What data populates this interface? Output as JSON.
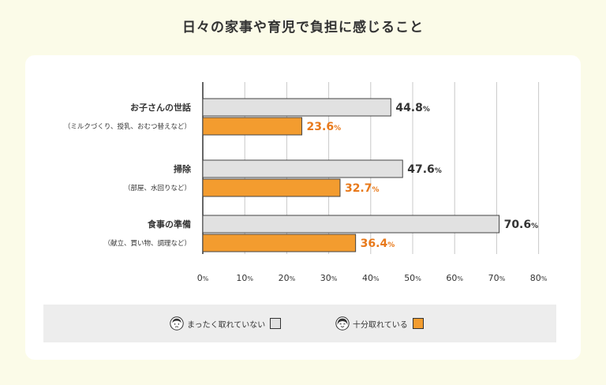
{
  "title": "日々の家事や育児で負担に感じること",
  "colors": {
    "none": "#e1e1e1",
    "enough": "#f39c2f",
    "enough_text": "#e8791a",
    "value_text": "#333333",
    "grid": "#c8c8c8",
    "axis": "#333333"
  },
  "legend": {
    "none_label": "まったく取れていない",
    "enough_label": "十分取れている",
    "none_icon": "sad-woman-icon",
    "enough_icon": "smiling-woman-icon"
  },
  "chart_data": {
    "type": "bar",
    "orientation": "horizontal",
    "title": "日々の家事や育児で負担に感じること",
    "xlim": [
      0,
      80
    ],
    "x_ticks": [
      0,
      10,
      20,
      30,
      40,
      50,
      60,
      70,
      80
    ],
    "tick_unit": "%",
    "grid": true,
    "legend_position": "bottom",
    "categories": [
      {
        "label": "お子さんの世話",
        "sublabel": "（ミルクづくり、授乳、おむつ替えなど）"
      },
      {
        "label": "掃除",
        "sublabel": "（部屋、水回りなど）"
      },
      {
        "label": "食事の準備",
        "sublabel": "（献立、買い物、調理など）"
      }
    ],
    "series": [
      {
        "name": "まったく取れていない",
        "values": [
          44.8,
          47.6,
          70.6
        ]
      },
      {
        "name": "十分取れている",
        "values": [
          23.6,
          32.7,
          36.4
        ]
      }
    ],
    "value_unit": "%"
  }
}
